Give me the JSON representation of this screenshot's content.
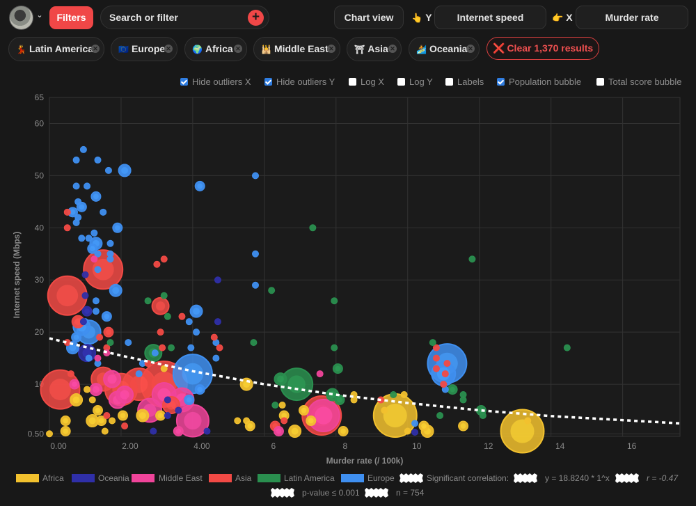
{
  "header": {
    "avatar_alt": "User avatar",
    "filters_label": "Filters",
    "search_placeholder": "Search or filter",
    "chart_view_label": "Chart view",
    "y_axis_prefix": "Y",
    "y_axis_value": "Internet speed",
    "x_axis_prefix": "X",
    "x_axis_value": "Murder rate",
    "y_hand": "👆",
    "x_hand": "👉"
  },
  "filter_chips": [
    {
      "emoji": "💃",
      "label": "Latin America"
    },
    {
      "emoji": "🇪🇺",
      "label": "Europe"
    },
    {
      "emoji": "🌍",
      "label": "Africa"
    },
    {
      "emoji": "🕌",
      "label": "Middle East"
    },
    {
      "emoji": "⛩",
      "label": "Asia"
    },
    {
      "emoji": "🏄",
      "label": "Oceania"
    }
  ],
  "clear_chip": {
    "icon": "❌",
    "label": "Clear 1,370 results"
  },
  "options": [
    {
      "label": "Hide outliers X",
      "checked": true
    },
    {
      "label": "Hide outliers Y",
      "checked": true
    },
    {
      "label": "Log X",
      "checked": false
    },
    {
      "label": "Log Y",
      "checked": false
    },
    {
      "label": "Labels",
      "checked": false
    },
    {
      "label": "Population bubble",
      "checked": true
    },
    {
      "label": "Total score bubble",
      "checked": false
    }
  ],
  "colors": {
    "Africa": "#f2c12e",
    "Oceania": "#2f2fa8",
    "Middle East": "#f0449a",
    "Asia": "#f24a45",
    "Latin America": "#2a8f4f",
    "Europe": "#3f8ff0",
    "accent": "#f04747"
  },
  "legend": {
    "items": [
      "Africa",
      "Oceania",
      "Middle East",
      "Asia",
      "Latin America",
      "Europe"
    ],
    "correlation_label": "Significant correlation:",
    "equation": "y = 18.8240 * 1^x",
    "r": "r = -0.47",
    "p_value": "p-value ≤ 0.001",
    "n": "n = 754"
  },
  "chart_data": {
    "type": "scatter",
    "title": "",
    "xlabel": "Murder rate (/ 100k)",
    "ylabel": "Internet speed (Mbps)",
    "xlim": [
      0,
      17.6
    ],
    "ylim": [
      0,
      65
    ],
    "x_ticks": [
      "0.00",
      "2.00",
      "4.00",
      "6",
      "8",
      "10",
      "12",
      "14",
      "16"
    ],
    "x_tick_values": [
      0,
      2,
      4,
      6,
      8,
      10,
      12,
      14,
      16
    ],
    "y_ticks": [
      "0.50",
      "10",
      "20",
      "30",
      "40",
      "50",
      "60",
      "65"
    ],
    "y_tick_values": [
      0.5,
      10,
      20,
      30,
      40,
      50,
      60,
      65
    ],
    "grid": true,
    "legend_position": "bottom",
    "trendline": {
      "type": "exponential",
      "a": 18.824,
      "label": "y = 18.8240 * 1^x",
      "points": [
        [
          0,
          18.8
        ],
        [
          2,
          15.5
        ],
        [
          4,
          12.5
        ],
        [
          6,
          10.0
        ],
        [
          8,
          8.0
        ],
        [
          10,
          6.4
        ],
        [
          12,
          5.0
        ],
        [
          14,
          3.9
        ],
        [
          17.6,
          2.5
        ]
      ]
    },
    "bubble_size": "population",
    "series": [
      {
        "name": "Europe",
        "points": [
          [
            0.95,
            55,
            1
          ],
          [
            0.75,
            53,
            1
          ],
          [
            1.35,
            53,
            1
          ],
          [
            2.1,
            51,
            3
          ],
          [
            1.65,
            51,
            1
          ],
          [
            0.75,
            48,
            1
          ],
          [
            1.05,
            48,
            1
          ],
          [
            1.3,
            46,
            2
          ],
          [
            0.8,
            45,
            1
          ],
          [
            0.9,
            44,
            2
          ],
          [
            0.65,
            43,
            2
          ],
          [
            1.5,
            43,
            1
          ],
          [
            0.8,
            42,
            1
          ],
          [
            0.75,
            41,
            1
          ],
          [
            1.9,
            40,
            2
          ],
          [
            1.25,
            39,
            1
          ],
          [
            0.9,
            38,
            1
          ],
          [
            1.1,
            38,
            1
          ],
          [
            1.3,
            37,
            3
          ],
          [
            1.2,
            36,
            2
          ],
          [
            1.35,
            35,
            1
          ],
          [
            1.7,
            37,
            1
          ],
          [
            1.7,
            35,
            1
          ],
          [
            1.7,
            34,
            1
          ],
          [
            1.35,
            32,
            1
          ],
          [
            1.85,
            28,
            3
          ],
          [
            1.3,
            26,
            1
          ],
          [
            1.3,
            24,
            1
          ],
          [
            1.6,
            23,
            2
          ],
          [
            1.0,
            22,
            1
          ],
          [
            0.9,
            21,
            4
          ],
          [
            1.1,
            20,
            5
          ],
          [
            0.75,
            19,
            2
          ],
          [
            0.65,
            17,
            3
          ],
          [
            1.1,
            15,
            1
          ],
          [
            1.35,
            14,
            1
          ],
          [
            4.2,
            48,
            2
          ],
          [
            5.75,
            50,
            1
          ],
          [
            5.75,
            35,
            1
          ],
          [
            5.75,
            29,
            1
          ],
          [
            4.1,
            24,
            3
          ],
          [
            3.9,
            22,
            1
          ],
          [
            4.1,
            20,
            1
          ],
          [
            3.95,
            17,
            1
          ],
          [
            2.95,
            16,
            1
          ],
          [
            2.6,
            14,
            1
          ],
          [
            2.5,
            12,
            1
          ],
          [
            2.2,
            18,
            1
          ],
          [
            4.0,
            12,
            7
          ],
          [
            4.2,
            9,
            2
          ],
          [
            3.9,
            7,
            2
          ],
          [
            11.1,
            14,
            7
          ],
          [
            11.0,
            12,
            5
          ],
          [
            11.05,
            9,
            1
          ],
          [
            10.2,
            2.5,
            1
          ],
          [
            4.65,
            18,
            1
          ],
          [
            4.65,
            15,
            1
          ]
        ]
      },
      {
        "name": "Asia",
        "points": [
          [
            0.5,
            40,
            1
          ],
          [
            0.5,
            43,
            1
          ],
          [
            1.5,
            32,
            7
          ],
          [
            0.5,
            27,
            7
          ],
          [
            0.8,
            22,
            3
          ],
          [
            0.5,
            18,
            1
          ],
          [
            0.6,
            12,
            1
          ],
          [
            0.3,
            9,
            7
          ],
          [
            1.5,
            11,
            5
          ],
          [
            2.5,
            10,
            6
          ],
          [
            3.1,
            25,
            4
          ],
          [
            3.1,
            20,
            1
          ],
          [
            3.15,
            17,
            1
          ],
          [
            3.7,
            23,
            1
          ],
          [
            1.4,
            19,
            1
          ],
          [
            1.6,
            17,
            1
          ],
          [
            1.65,
            20,
            2
          ],
          [
            2.75,
            14,
            1
          ],
          [
            2.0,
            9,
            6
          ],
          [
            3.2,
            10,
            8
          ],
          [
            3.4,
            6,
            4
          ],
          [
            4.6,
            19,
            1
          ],
          [
            4.75,
            17,
            1
          ],
          [
            1.6,
            4,
            1
          ],
          [
            2.1,
            2,
            1
          ],
          [
            3.2,
            34,
            1
          ],
          [
            3.0,
            33,
            1
          ],
          [
            6.3,
            2,
            2
          ],
          [
            6.55,
            3,
            1
          ],
          [
            7.6,
            4,
            7
          ],
          [
            10.8,
            17,
            1
          ],
          [
            10.8,
            15,
            1
          ],
          [
            10.8,
            13,
            1
          ],
          [
            11.1,
            14,
            1
          ],
          [
            11.05,
            12,
            1
          ],
          [
            11.0,
            10,
            1
          ],
          [
            9.25,
            7,
            1
          ]
        ]
      },
      {
        "name": "Middle East",
        "points": [
          [
            1.25,
            34,
            1
          ],
          [
            0.7,
            10,
            2
          ],
          [
            1.6,
            16,
            1
          ],
          [
            1.35,
            15,
            1
          ],
          [
            1.3,
            9,
            3
          ],
          [
            1.75,
            11,
            4
          ],
          [
            1.9,
            7,
            4
          ],
          [
            2.1,
            8,
            4
          ],
          [
            2.8,
            5,
            5
          ],
          [
            3.2,
            8,
            5
          ],
          [
            3.6,
            1,
            2
          ],
          [
            3.7,
            7,
            5
          ],
          [
            4.0,
            3,
            6
          ],
          [
            7.55,
            12,
            1
          ],
          [
            7.65,
            4,
            6
          ],
          [
            6.4,
            1,
            2
          ]
        ]
      },
      {
        "name": "Africa",
        "points": [
          [
            0.0,
            0.5,
            1
          ],
          [
            0.45,
            3,
            2
          ],
          [
            0.45,
            1,
            2
          ],
          [
            0.75,
            7,
            3
          ],
          [
            1.05,
            9,
            1
          ],
          [
            1.2,
            7,
            1
          ],
          [
            1.2,
            3,
            3
          ],
          [
            1.35,
            5,
            2
          ],
          [
            1.45,
            3,
            2
          ],
          [
            1.55,
            1,
            1
          ],
          [
            1.75,
            3,
            1
          ],
          [
            2.05,
            4,
            2
          ],
          [
            2.6,
            4,
            3
          ],
          [
            3.1,
            4,
            2
          ],
          [
            3.2,
            13,
            1
          ],
          [
            5.5,
            10,
            3
          ],
          [
            5.25,
            3,
            1
          ],
          [
            5.5,
            3,
            1
          ],
          [
            5.6,
            2,
            2
          ],
          [
            6.5,
            6,
            1
          ],
          [
            6.55,
            4,
            2
          ],
          [
            6.85,
            1,
            3
          ],
          [
            7.1,
            5,
            2
          ],
          [
            7.3,
            3,
            2
          ],
          [
            8.2,
            1,
            2
          ],
          [
            8.5,
            8,
            1
          ],
          [
            8.5,
            7,
            1
          ],
          [
            9.35,
            5,
            1
          ],
          [
            9.65,
            4,
            9
          ],
          [
            9.9,
            8,
            1
          ],
          [
            10.45,
            2,
            2
          ],
          [
            10.55,
            1,
            3
          ],
          [
            10.0,
            1,
            1
          ],
          [
            11.55,
            2,
            2
          ],
          [
            13.2,
            1,
            9
          ],
          [
            13.35,
            3,
            1
          ]
        ]
      },
      {
        "name": "Oceania",
        "points": [
          [
            1.0,
            31,
            1
          ],
          [
            1.0,
            27,
            1
          ],
          [
            1.05,
            24,
            2
          ],
          [
            0.95,
            22,
            1
          ],
          [
            1.05,
            16,
            4
          ],
          [
            4.7,
            30,
            1
          ],
          [
            4.7,
            22,
            1
          ],
          [
            2.9,
            1,
            1
          ],
          [
            3.3,
            7,
            1
          ],
          [
            3.3,
            4,
            1
          ],
          [
            3.6,
            5,
            1
          ],
          [
            4.4,
            1,
            1
          ],
          [
            10.2,
            0.8,
            1
          ]
        ]
      },
      {
        "name": "Latin America",
        "points": [
          [
            7.35,
            40,
            1
          ],
          [
            3.2,
            27,
            1
          ],
          [
            2.9,
            16,
            4
          ],
          [
            3.3,
            23,
            1
          ],
          [
            2.75,
            26,
            1
          ],
          [
            3.4,
            17,
            1
          ],
          [
            6.2,
            28,
            1
          ],
          [
            7.95,
            26,
            1
          ],
          [
            7.95,
            17,
            1
          ],
          [
            6.45,
            11,
            3
          ],
          [
            6.9,
            10,
            6
          ],
          [
            8.05,
            13,
            2
          ],
          [
            7.9,
            8,
            3
          ],
          [
            8.1,
            7,
            2
          ],
          [
            9.6,
            8,
            1
          ],
          [
            11.8,
            34,
            1
          ],
          [
            14.45,
            17,
            1
          ],
          [
            10.7,
            18,
            1
          ],
          [
            11.25,
            9,
            2
          ],
          [
            11.55,
            8,
            1
          ],
          [
            11.55,
            7,
            1
          ],
          [
            12.05,
            5,
            2
          ],
          [
            12.1,
            4,
            1
          ],
          [
            10.9,
            4,
            1
          ],
          [
            5.7,
            18,
            1
          ],
          [
            6.3,
            6,
            1
          ],
          [
            1.7,
            18,
            1
          ]
        ]
      }
    ]
  }
}
